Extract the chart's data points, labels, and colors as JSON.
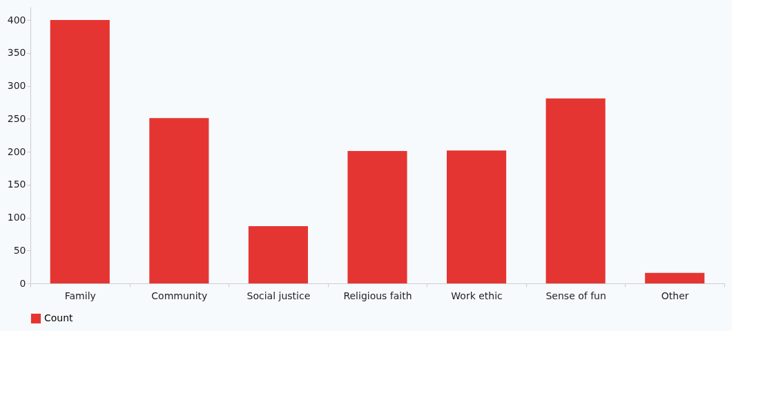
{
  "chart_data": {
    "type": "bar",
    "categories": [
      "Family",
      "Community",
      "Social justice",
      "Religious faith",
      "Work ethic",
      "Sense of fun",
      "Other"
    ],
    "series": [
      {
        "name": "Count",
        "color": "#e53532",
        "values": [
          400,
          251,
          87,
          201,
          202,
          281,
          16
        ]
      }
    ],
    "ylim": [
      0,
      420
    ],
    "yticks": [
      0,
      50,
      100,
      150,
      200,
      250,
      300,
      350,
      400
    ],
    "grid": false,
    "legend": "bottom"
  }
}
